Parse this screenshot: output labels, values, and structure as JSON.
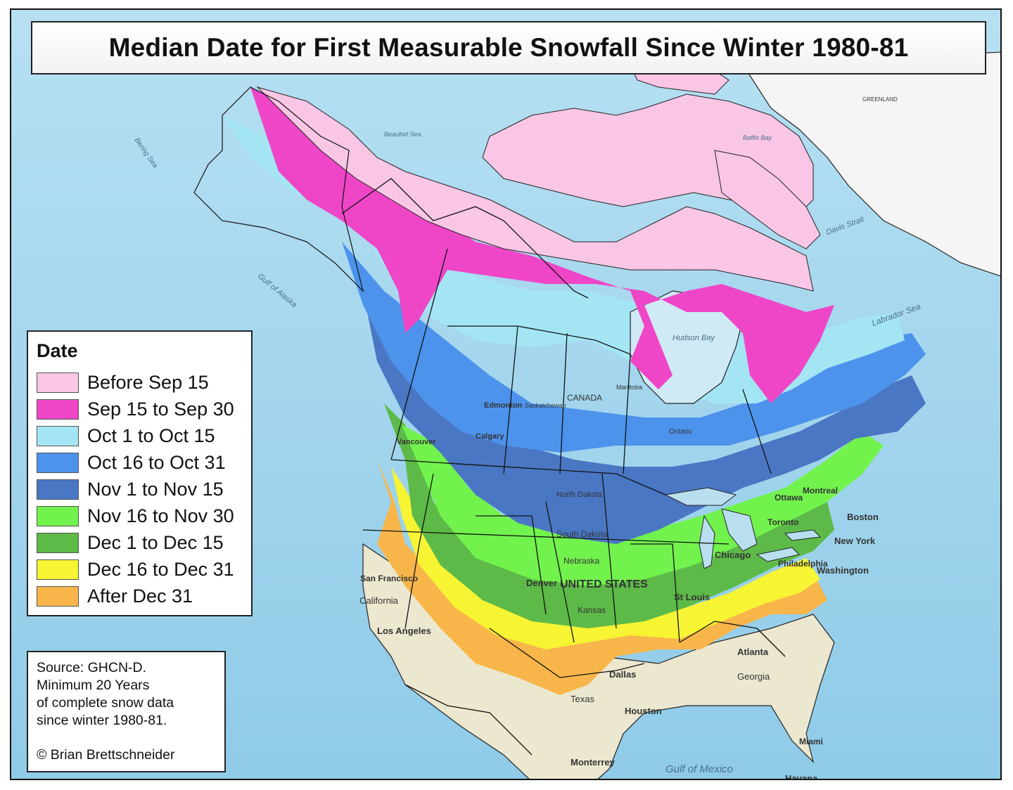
{
  "title": "Median Date for First Measurable Snowfall Since Winter 1980-81",
  "legend": {
    "title": "Date",
    "items": [
      {
        "label": "Before Sep 15",
        "color": "#f9c6e6"
      },
      {
        "label": "Sep 15 to Sep 30",
        "color": "#ef46c8"
      },
      {
        "label": "Oct 1 to Oct 15",
        "color": "#a4e5f4"
      },
      {
        "label": "Oct 16 to Oct 31",
        "color": "#4d93ec"
      },
      {
        "label": "Nov 1 to Nov 15",
        "color": "#4a77c4"
      },
      {
        "label": "Nov 16 to Nov 30",
        "color": "#72f24d"
      },
      {
        "label": "Dec 1 to Dec 15",
        "color": "#5dba48"
      },
      {
        "label": "Dec 16 to Dec 31",
        "color": "#f6f433"
      },
      {
        "label": "After Dec 31",
        "color": "#f8b64a"
      }
    ]
  },
  "source": {
    "line1": "Source: GHCN-D.",
    "line2": "Minimum 20 Years",
    "line3": "of complete snow data",
    "line4": "since winter 1980-81.",
    "credit": "© Brian Brettschneider"
  },
  "map_labels": {
    "water": [
      "Bering Sea",
      "Beaufort Sea",
      "Baffin Bay",
      "Davis Strait",
      "Labrador Sea",
      "Hudson Bay",
      "Gulf of Alaska",
      "Gulf of Mexico"
    ],
    "regions": [
      "UNITED STATES",
      "CANADA",
      "GREENLAND",
      "California",
      "Texas",
      "Georgia",
      "Kansas",
      "Nebraska",
      "South Dakota",
      "North Dakota",
      "Ontario",
      "Manitoba",
      "Saskatchewan"
    ],
    "cities": [
      "Edmonton",
      "Calgary",
      "Vancouver",
      "Denver",
      "Dallas",
      "Houston",
      "Atlanta",
      "Chicago",
      "St Louis",
      "Boston",
      "Washington",
      "Philadelphia",
      "New York",
      "Toronto",
      "Ottawa",
      "Montreal",
      "San Francisco",
      "Los Angeles",
      "Miami",
      "Havana",
      "Monterrey"
    ]
  }
}
